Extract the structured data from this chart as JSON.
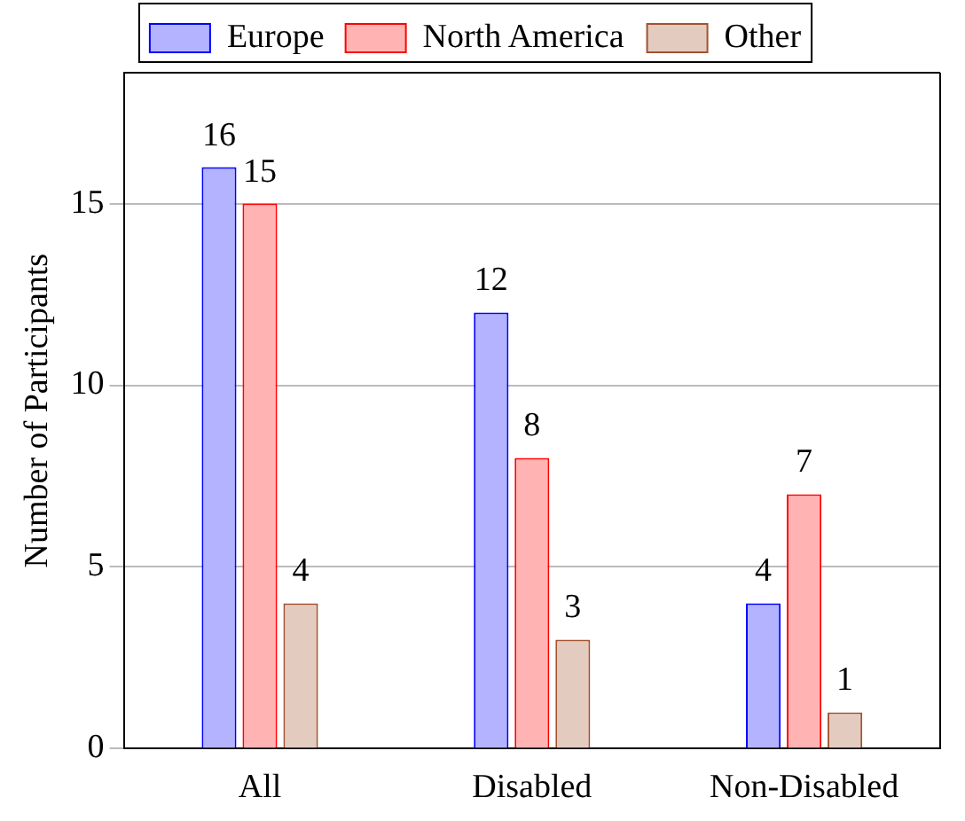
{
  "chart_data": {
    "type": "bar",
    "ylabel": "Number of Participants",
    "categories": [
      "All",
      "Disabled",
      "Non-Disabled"
    ],
    "series": [
      {
        "name": "Europe",
        "color": "#b3b3ff",
        "values": [
          16,
          12,
          4
        ]
      },
      {
        "name": "North America",
        "color": "#ffb3b3",
        "values": [
          15,
          8,
          7
        ]
      },
      {
        "name": "Other",
        "color": "#e3cbc0",
        "values": [
          4,
          3,
          1
        ]
      }
    ],
    "ylim": [
      0,
      18.6
    ],
    "yticks": [
      0,
      5,
      10,
      15
    ],
    "grid": "y",
    "legend": "top",
    "data_labels": true
  }
}
